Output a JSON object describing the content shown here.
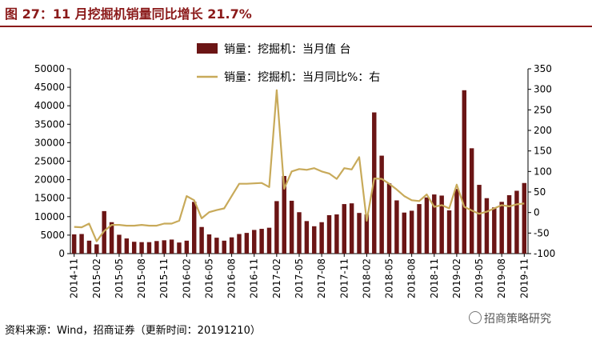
{
  "header": {
    "title": "图 27：11 月挖掘机销量同比增长 21.7%"
  },
  "footer": {
    "source": "资料来源：Wind，招商证券（更新时间：20191210）",
    "watermark": "招商策略研究"
  },
  "chart_data": {
    "type": "bar",
    "legend": {
      "bar_label": "销量：挖掘机：当月值  台",
      "line_label": "销量：挖掘机：当月同比%：右",
      "placement": "top-center"
    },
    "colors": {
      "bar": "#6b1515",
      "line": "#c8aa5a"
    },
    "y_left": {
      "lim": [
        0,
        50000
      ],
      "ticks": [
        "0",
        "5000",
        "10000",
        "15000",
        "20000",
        "25000",
        "30000",
        "35000",
        "40000",
        "45000",
        "50000"
      ]
    },
    "y_right": {
      "lim": [
        -100,
        350
      ],
      "ticks": [
        "-100",
        "-50",
        "0",
        "50",
        "100",
        "150",
        "200",
        "250",
        "300",
        "350"
      ]
    },
    "x_tick_labels": [
      "2014-11",
      "2015-02",
      "2015-05",
      "2015-08",
      "2015-11",
      "2016-02",
      "2016-05",
      "2016-08",
      "2016-11",
      "2017-02",
      "2017-05",
      "2017-08",
      "2017-11",
      "2018-02",
      "2018-05",
      "2018-08",
      "2018-11",
      "2019-02",
      "2019-05",
      "2019-08",
      "2019-11"
    ],
    "series": [
      {
        "name": "销量：挖掘机：当月值  台",
        "kind": "bar",
        "axis": "left",
        "values": [
          5200,
          5300,
          3500,
          2500,
          11500,
          8500,
          5100,
          4100,
          3200,
          3100,
          3100,
          3400,
          3600,
          3800,
          3000,
          3500,
          14000,
          7200,
          5200,
          4300,
          3500,
          4400,
          5300,
          5600,
          6400,
          6700,
          7000,
          14200,
          21000,
          14300,
          11200,
          8800,
          7400,
          8500,
          10400,
          10600,
          13400,
          13600,
          11000,
          10600,
          38200,
          26500,
          19000,
          14400,
          11100,
          11600,
          13400,
          15200,
          16000,
          15700,
          11700,
          17500,
          44200,
          28500,
          18600,
          15000,
          12500,
          14000,
          15800,
          17000,
          19100
        ]
      },
      {
        "name": "销量：挖掘机：当月同比%：右",
        "kind": "line",
        "axis": "right",
        "values": [
          -35,
          -36,
          -27,
          -70,
          -45,
          -30,
          -30,
          -32,
          -32,
          -30,
          -32,
          -32,
          -27,
          -27,
          -20,
          40,
          30,
          -14,
          1,
          6,
          10,
          40,
          70,
          70,
          71,
          72,
          62,
          298,
          58,
          100,
          106,
          104,
          108,
          100,
          95,
          82,
          108,
          105,
          135,
          -20,
          83,
          82,
          70,
          56,
          40,
          30,
          28,
          44,
          14,
          18,
          10,
          68,
          14,
          5,
          -3,
          2,
          10,
          18,
          15,
          20,
          22
        ]
      }
    ]
  }
}
